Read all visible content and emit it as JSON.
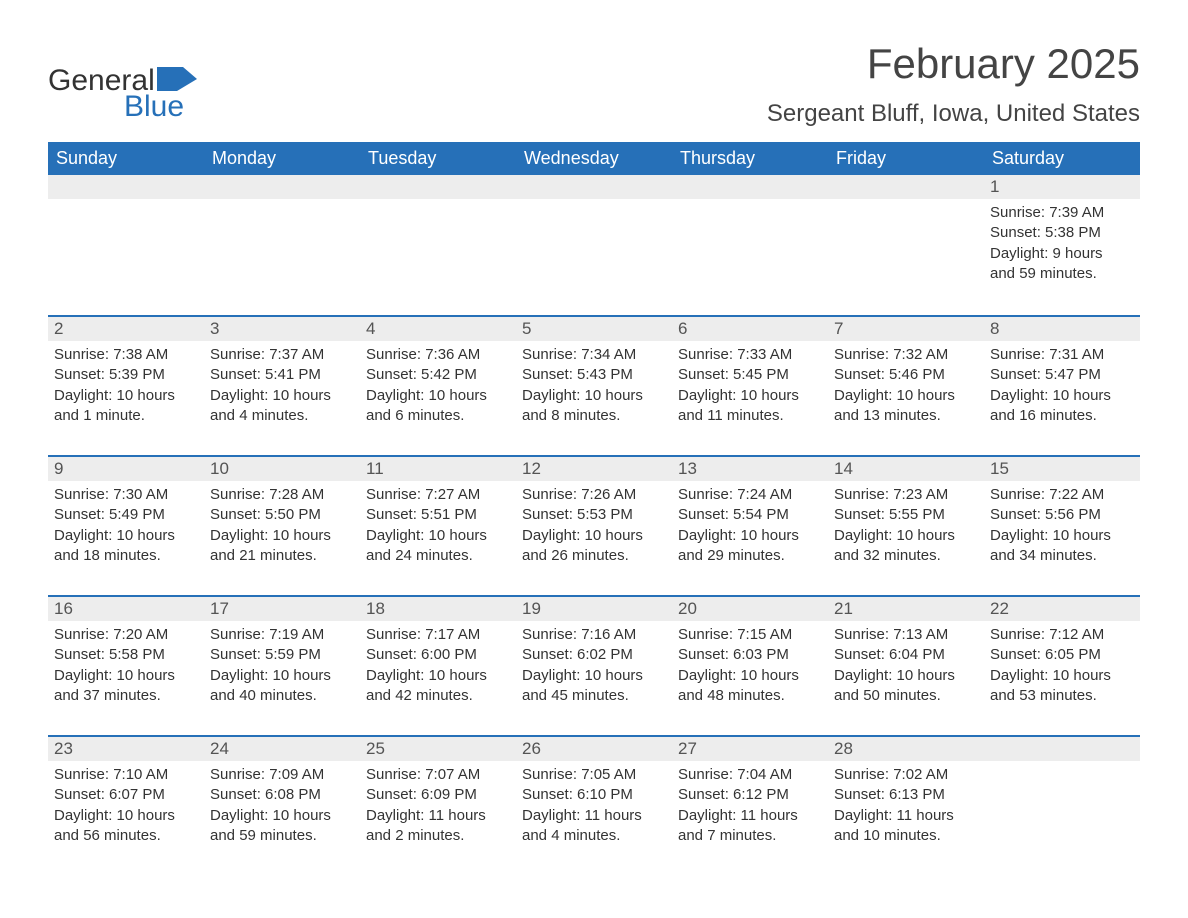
{
  "logo": {
    "text_general": "General",
    "text_blue": "Blue",
    "shape_color": "#2670b8"
  },
  "title": "February 2025",
  "location": "Sergeant Bluff, Iowa, United States",
  "colors": {
    "header_bg": "#2670b8",
    "header_text": "#ffffff",
    "daynum_bg": "#ededed",
    "daynum_text": "#545454",
    "body_text": "#333333",
    "border": "#2670b8"
  },
  "day_headers": [
    "Sunday",
    "Monday",
    "Tuesday",
    "Wednesday",
    "Thursday",
    "Friday",
    "Saturday"
  ],
  "weeks": [
    [
      {
        "day": "",
        "sunrise": "",
        "sunset": "",
        "daylight_a": "",
        "daylight_b": ""
      },
      {
        "day": "",
        "sunrise": "",
        "sunset": "",
        "daylight_a": "",
        "daylight_b": ""
      },
      {
        "day": "",
        "sunrise": "",
        "sunset": "",
        "daylight_a": "",
        "daylight_b": ""
      },
      {
        "day": "",
        "sunrise": "",
        "sunset": "",
        "daylight_a": "",
        "daylight_b": ""
      },
      {
        "day": "",
        "sunrise": "",
        "sunset": "",
        "daylight_a": "",
        "daylight_b": ""
      },
      {
        "day": "",
        "sunrise": "",
        "sunset": "",
        "daylight_a": "",
        "daylight_b": ""
      },
      {
        "day": "1",
        "sunrise": "Sunrise: 7:39 AM",
        "sunset": "Sunset: 5:38 PM",
        "daylight_a": "Daylight: 9 hours",
        "daylight_b": "and 59 minutes."
      }
    ],
    [
      {
        "day": "2",
        "sunrise": "Sunrise: 7:38 AM",
        "sunset": "Sunset: 5:39 PM",
        "daylight_a": "Daylight: 10 hours",
        "daylight_b": "and 1 minute."
      },
      {
        "day": "3",
        "sunrise": "Sunrise: 7:37 AM",
        "sunset": "Sunset: 5:41 PM",
        "daylight_a": "Daylight: 10 hours",
        "daylight_b": "and 4 minutes."
      },
      {
        "day": "4",
        "sunrise": "Sunrise: 7:36 AM",
        "sunset": "Sunset: 5:42 PM",
        "daylight_a": "Daylight: 10 hours",
        "daylight_b": "and 6 minutes."
      },
      {
        "day": "5",
        "sunrise": "Sunrise: 7:34 AM",
        "sunset": "Sunset: 5:43 PM",
        "daylight_a": "Daylight: 10 hours",
        "daylight_b": "and 8 minutes."
      },
      {
        "day": "6",
        "sunrise": "Sunrise: 7:33 AM",
        "sunset": "Sunset: 5:45 PM",
        "daylight_a": "Daylight: 10 hours",
        "daylight_b": "and 11 minutes."
      },
      {
        "day": "7",
        "sunrise": "Sunrise: 7:32 AM",
        "sunset": "Sunset: 5:46 PM",
        "daylight_a": "Daylight: 10 hours",
        "daylight_b": "and 13 minutes."
      },
      {
        "day": "8",
        "sunrise": "Sunrise: 7:31 AM",
        "sunset": "Sunset: 5:47 PM",
        "daylight_a": "Daylight: 10 hours",
        "daylight_b": "and 16 minutes."
      }
    ],
    [
      {
        "day": "9",
        "sunrise": "Sunrise: 7:30 AM",
        "sunset": "Sunset: 5:49 PM",
        "daylight_a": "Daylight: 10 hours",
        "daylight_b": "and 18 minutes."
      },
      {
        "day": "10",
        "sunrise": "Sunrise: 7:28 AM",
        "sunset": "Sunset: 5:50 PM",
        "daylight_a": "Daylight: 10 hours",
        "daylight_b": "and 21 minutes."
      },
      {
        "day": "11",
        "sunrise": "Sunrise: 7:27 AM",
        "sunset": "Sunset: 5:51 PM",
        "daylight_a": "Daylight: 10 hours",
        "daylight_b": "and 24 minutes."
      },
      {
        "day": "12",
        "sunrise": "Sunrise: 7:26 AM",
        "sunset": "Sunset: 5:53 PM",
        "daylight_a": "Daylight: 10 hours",
        "daylight_b": "and 26 minutes."
      },
      {
        "day": "13",
        "sunrise": "Sunrise: 7:24 AM",
        "sunset": "Sunset: 5:54 PM",
        "daylight_a": "Daylight: 10 hours",
        "daylight_b": "and 29 minutes."
      },
      {
        "day": "14",
        "sunrise": "Sunrise: 7:23 AM",
        "sunset": "Sunset: 5:55 PM",
        "daylight_a": "Daylight: 10 hours",
        "daylight_b": "and 32 minutes."
      },
      {
        "day": "15",
        "sunrise": "Sunrise: 7:22 AM",
        "sunset": "Sunset: 5:56 PM",
        "daylight_a": "Daylight: 10 hours",
        "daylight_b": "and 34 minutes."
      }
    ],
    [
      {
        "day": "16",
        "sunrise": "Sunrise: 7:20 AM",
        "sunset": "Sunset: 5:58 PM",
        "daylight_a": "Daylight: 10 hours",
        "daylight_b": "and 37 minutes."
      },
      {
        "day": "17",
        "sunrise": "Sunrise: 7:19 AM",
        "sunset": "Sunset: 5:59 PM",
        "daylight_a": "Daylight: 10 hours",
        "daylight_b": "and 40 minutes."
      },
      {
        "day": "18",
        "sunrise": "Sunrise: 7:17 AM",
        "sunset": "Sunset: 6:00 PM",
        "daylight_a": "Daylight: 10 hours",
        "daylight_b": "and 42 minutes."
      },
      {
        "day": "19",
        "sunrise": "Sunrise: 7:16 AM",
        "sunset": "Sunset: 6:02 PM",
        "daylight_a": "Daylight: 10 hours",
        "daylight_b": "and 45 minutes."
      },
      {
        "day": "20",
        "sunrise": "Sunrise: 7:15 AM",
        "sunset": "Sunset: 6:03 PM",
        "daylight_a": "Daylight: 10 hours",
        "daylight_b": "and 48 minutes."
      },
      {
        "day": "21",
        "sunrise": "Sunrise: 7:13 AM",
        "sunset": "Sunset: 6:04 PM",
        "daylight_a": "Daylight: 10 hours",
        "daylight_b": "and 50 minutes."
      },
      {
        "day": "22",
        "sunrise": "Sunrise: 7:12 AM",
        "sunset": "Sunset: 6:05 PM",
        "daylight_a": "Daylight: 10 hours",
        "daylight_b": "and 53 minutes."
      }
    ],
    [
      {
        "day": "23",
        "sunrise": "Sunrise: 7:10 AM",
        "sunset": "Sunset: 6:07 PM",
        "daylight_a": "Daylight: 10 hours",
        "daylight_b": "and 56 minutes."
      },
      {
        "day": "24",
        "sunrise": "Sunrise: 7:09 AM",
        "sunset": "Sunset: 6:08 PM",
        "daylight_a": "Daylight: 10 hours",
        "daylight_b": "and 59 minutes."
      },
      {
        "day": "25",
        "sunrise": "Sunrise: 7:07 AM",
        "sunset": "Sunset: 6:09 PM",
        "daylight_a": "Daylight: 11 hours",
        "daylight_b": "and 2 minutes."
      },
      {
        "day": "26",
        "sunrise": "Sunrise: 7:05 AM",
        "sunset": "Sunset: 6:10 PM",
        "daylight_a": "Daylight: 11 hours",
        "daylight_b": "and 4 minutes."
      },
      {
        "day": "27",
        "sunrise": "Sunrise: 7:04 AM",
        "sunset": "Sunset: 6:12 PM",
        "daylight_a": "Daylight: 11 hours",
        "daylight_b": "and 7 minutes."
      },
      {
        "day": "28",
        "sunrise": "Sunrise: 7:02 AM",
        "sunset": "Sunset: 6:13 PM",
        "daylight_a": "Daylight: 11 hours",
        "daylight_b": "and 10 minutes."
      },
      {
        "day": "",
        "sunrise": "",
        "sunset": "",
        "daylight_a": "",
        "daylight_b": ""
      }
    ]
  ]
}
